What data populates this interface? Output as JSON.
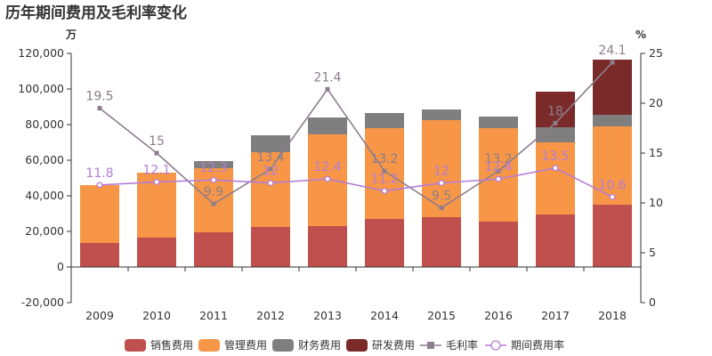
{
  "chart_data": {
    "type": "bar",
    "title": "历年期间费用及毛利率变化",
    "left_unit": "万",
    "right_unit": "%",
    "categories": [
      "2009",
      "2010",
      "2011",
      "2012",
      "2013",
      "2014",
      "2015",
      "2016",
      "2017",
      "2018"
    ],
    "stacked": true,
    "ylim_left": [
      -20000,
      120000
    ],
    "left_ticks": [
      "-20,000",
      "0",
      "20,000",
      "40,000",
      "60,000",
      "80,000",
      "100,000",
      "120,000"
    ],
    "ylim_right": [
      0,
      25
    ],
    "right_ticks": [
      "0",
      "5",
      "10",
      "15",
      "20",
      "25"
    ],
    "series": [
      {
        "name": "销售费用",
        "kind": "bar",
        "axis": "left",
        "color": "#c0504d",
        "values": [
          13500,
          16500,
          19500,
          22500,
          23000,
          27000,
          28000,
          25500,
          29500,
          35000
        ]
      },
      {
        "name": "管理费用",
        "kind": "bar",
        "axis": "left",
        "color": "#f79646",
        "values": [
          32500,
          36500,
          36000,
          42000,
          51500,
          51000,
          54500,
          52500,
          40500,
          44000
        ]
      },
      {
        "name": "财务费用",
        "kind": "bar",
        "axis": "left",
        "color": "#7f7f7f",
        "values": [
          0,
          0,
          4000,
          9500,
          9500,
          8500,
          6000,
          6500,
          8500,
          6500
        ]
      },
      {
        "name": "研发费用",
        "kind": "bar",
        "axis": "left",
        "color": "#7b2a2a",
        "values": [
          0,
          0,
          0,
          0,
          0,
          0,
          0,
          0,
          20000,
          31000
        ]
      },
      {
        "name": "毛利率",
        "kind": "line",
        "axis": "right",
        "color": "#8c7e8c",
        "values": [
          19.5,
          15,
          9.9,
          13.4,
          21.4,
          13.2,
          9.5,
          13.2,
          18,
          24.1
        ],
        "labels": [
          "19.5",
          "15",
          "9.9",
          "13.4",
          "21.4",
          "13.2",
          "9.5",
          "13.2",
          "18",
          "24.1"
        ]
      },
      {
        "name": "期间费用率",
        "kind": "line",
        "axis": "right",
        "color": "#b57cd8",
        "values": [
          11.8,
          12.1,
          12.3,
          12,
          12.4,
          11.2,
          12,
          12.4,
          13.5,
          10.6
        ],
        "labels": [
          "11.8",
          "12.1",
          "12.3",
          "12",
          "12.4",
          "11.2",
          "12",
          "12.4",
          "13.5",
          "10.6"
        ]
      }
    ],
    "legend_position": "bottom",
    "grid": false
  }
}
